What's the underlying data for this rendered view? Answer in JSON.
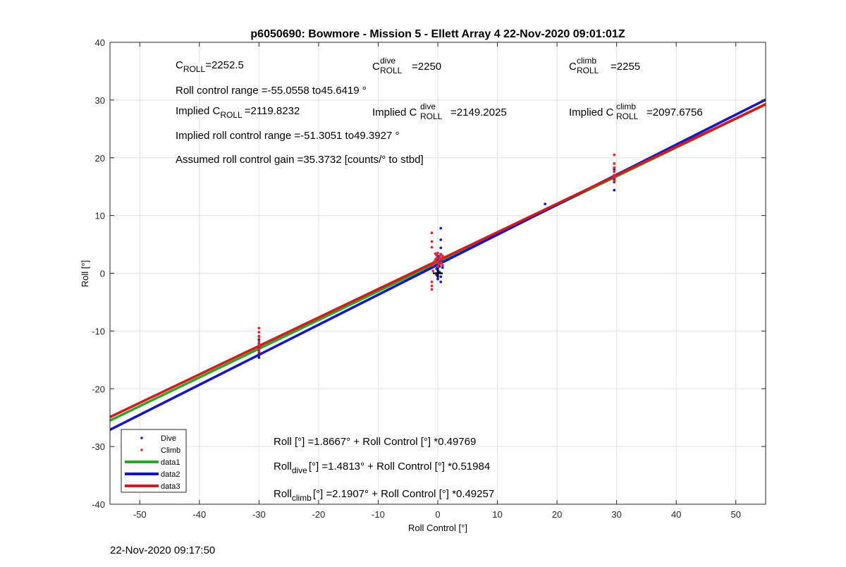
{
  "timestamp": "22-Nov-2020 09:17:50",
  "chart_data": {
    "type": "scatter",
    "title": "p6050690: Bowmore - Mission 5 - Ellett Array 4 22-Nov-2020 09:01:01Z",
    "xlabel": "Roll Control [°]",
    "ylabel": "Roll [°]",
    "xlim": [
      -55,
      55
    ],
    "ylim": [
      -40,
      40
    ],
    "xticks": [
      -50,
      -40,
      -30,
      -20,
      -10,
      0,
      10,
      20,
      30,
      40,
      50
    ],
    "yticks": [
      -40,
      -30,
      -20,
      -10,
      0,
      10,
      20,
      30,
      40
    ],
    "grid": true,
    "legend_position": "bottom-left",
    "colors": {
      "dive": "#1a1acc",
      "climb": "#e8262a",
      "data1": "#2aa52a",
      "data2": "#1515c8",
      "data3": "#d61a1a",
      "marker": "#000000"
    },
    "series": [
      {
        "name": "Dive",
        "kind": "scatter",
        "color": "#1a1acc",
        "points": [
          [
            -30,
            -14.6
          ],
          [
            -30,
            -14.2
          ],
          [
            -30,
            -13.8
          ],
          [
            -30,
            -13.5
          ],
          [
            -30,
            -13.0
          ],
          [
            -30,
            -12.8
          ],
          [
            -30,
            -12.2
          ],
          [
            -30,
            -11.5
          ],
          [
            -30,
            -10.9
          ],
          [
            0,
            -1.0
          ],
          [
            0,
            -0.5
          ],
          [
            0,
            0.0
          ],
          [
            0,
            0.5
          ],
          [
            0,
            1.0
          ],
          [
            0,
            1.5
          ],
          [
            0,
            2.0
          ],
          [
            0,
            2.5
          ],
          [
            0,
            3.0
          ],
          [
            0.3,
            0.2
          ],
          [
            0.3,
            1.2
          ],
          [
            0.3,
            2.2
          ],
          [
            0.3,
            2.9
          ],
          [
            0.5,
            7.8
          ],
          [
            0.5,
            5.8
          ],
          [
            0.5,
            4.4
          ],
          [
            0.5,
            3.3
          ],
          [
            0.5,
            -0.6
          ],
          [
            0.5,
            -1.5
          ],
          [
            0.8,
            1.0
          ],
          [
            0.8,
            2.0
          ],
          [
            -0.2,
            -0.3
          ],
          [
            -0.2,
            0.8
          ],
          [
            18,
            12.0
          ],
          [
            29.6,
            14.4
          ],
          [
            29.6,
            15.8
          ],
          [
            29.6,
            16.5
          ],
          [
            29.6,
            17.0
          ],
          [
            29.6,
            17.6
          ],
          [
            29.6,
            18.0
          ],
          [
            29.6,
            16.2
          ]
        ]
      },
      {
        "name": "Climb",
        "kind": "scatter",
        "color": "#e8262a",
        "points": [
          [
            -30,
            -9.5
          ],
          [
            -30,
            -10.2
          ],
          [
            -30,
            -11.0
          ],
          [
            -30,
            -11.8
          ],
          [
            -30,
            -12.3
          ],
          [
            -30,
            -12.6
          ],
          [
            -30,
            -13.1
          ],
          [
            -30,
            -13.6
          ],
          [
            -1,
            7.0
          ],
          [
            -1,
            5.5
          ],
          [
            -1,
            4.5
          ],
          [
            -1,
            -1.5
          ],
          [
            -1,
            -2.2
          ],
          [
            -1,
            -2.8
          ],
          [
            -0.8,
            0.4
          ],
          [
            -0.8,
            1.4
          ],
          [
            -0.6,
            2.0
          ],
          [
            -0.4,
            2.4
          ],
          [
            -0.4,
            3.4
          ],
          [
            -0.2,
            3.1
          ],
          [
            -0.2,
            2.6
          ],
          [
            0,
            3.5
          ],
          [
            0,
            2.0
          ],
          [
            0,
            1.2
          ],
          [
            0.2,
            2.3
          ],
          [
            0.2,
            1.6
          ],
          [
            0.3,
            2.8
          ],
          [
            0.5,
            2.5
          ],
          [
            0.5,
            3.3
          ],
          [
            0.6,
            1.8
          ],
          [
            0.8,
            3.0
          ],
          [
            0.8,
            1.4
          ],
          [
            29.6,
            20.5
          ],
          [
            29.6,
            19.0
          ],
          [
            29.6,
            18.3
          ],
          [
            29.6,
            17.6
          ],
          [
            29.6,
            17.0
          ],
          [
            29.6,
            16.6
          ],
          [
            29.6,
            16.0
          ]
        ]
      },
      {
        "name": "data1",
        "kind": "line",
        "color": "#2aa52a",
        "intercept": 1.8667,
        "slope": 0.49769
      },
      {
        "name": "data2",
        "kind": "line",
        "color": "#1515c8",
        "intercept": 1.4813,
        "slope": 0.51984
      },
      {
        "name": "data3",
        "kind": "line",
        "color": "#d61a1a",
        "intercept": 2.1907,
        "slope": 0.49257
      }
    ],
    "marker_plus": {
      "x": 0,
      "y": 0
    },
    "annotations": {
      "c_roll": {
        "pre": "C",
        "sub": "ROLL",
        "post": "=2252.5"
      },
      "c_roll_dive": {
        "pre": "C",
        "sub": "ROLL",
        "sup": "dive",
        "post": "=2250"
      },
      "c_roll_climb": {
        "pre": "C",
        "sub": "ROLL",
        "sup": "climb",
        "post": "=2255"
      },
      "range": "Roll control range =-55.0558 to45.6419 °",
      "implied_c": {
        "pre": "Implied C",
        "sub": "ROLL",
        "post": "=2119.8232"
      },
      "implied_dive": {
        "pre": "Implied C",
        "sub": "ROLL",
        "sup": "dive",
        "post": "=2149.2025"
      },
      "implied_climb": {
        "pre": "Implied C",
        "sub": "ROLL",
        "sup": "climb",
        "post": "=2097.6756"
      },
      "implied_range": "Implied roll control range =-51.3051 to49.3927 °",
      "gain": "Assumed roll control gain =35.3732 [counts/° to stbd]",
      "eq_all": {
        "pre": "Roll [°] =1.8667° + Roll Control [°] *0.49769"
      },
      "eq_dive": {
        "pre": "Roll",
        "sub": "dive",
        "post": "[°] =1.4813° + Roll Control [°] *0.51984"
      },
      "eq_climb": {
        "pre": "Roll",
        "sub": "climb",
        "post": "[°] =2.1907° + Roll Control [°] *0.49257"
      }
    }
  }
}
